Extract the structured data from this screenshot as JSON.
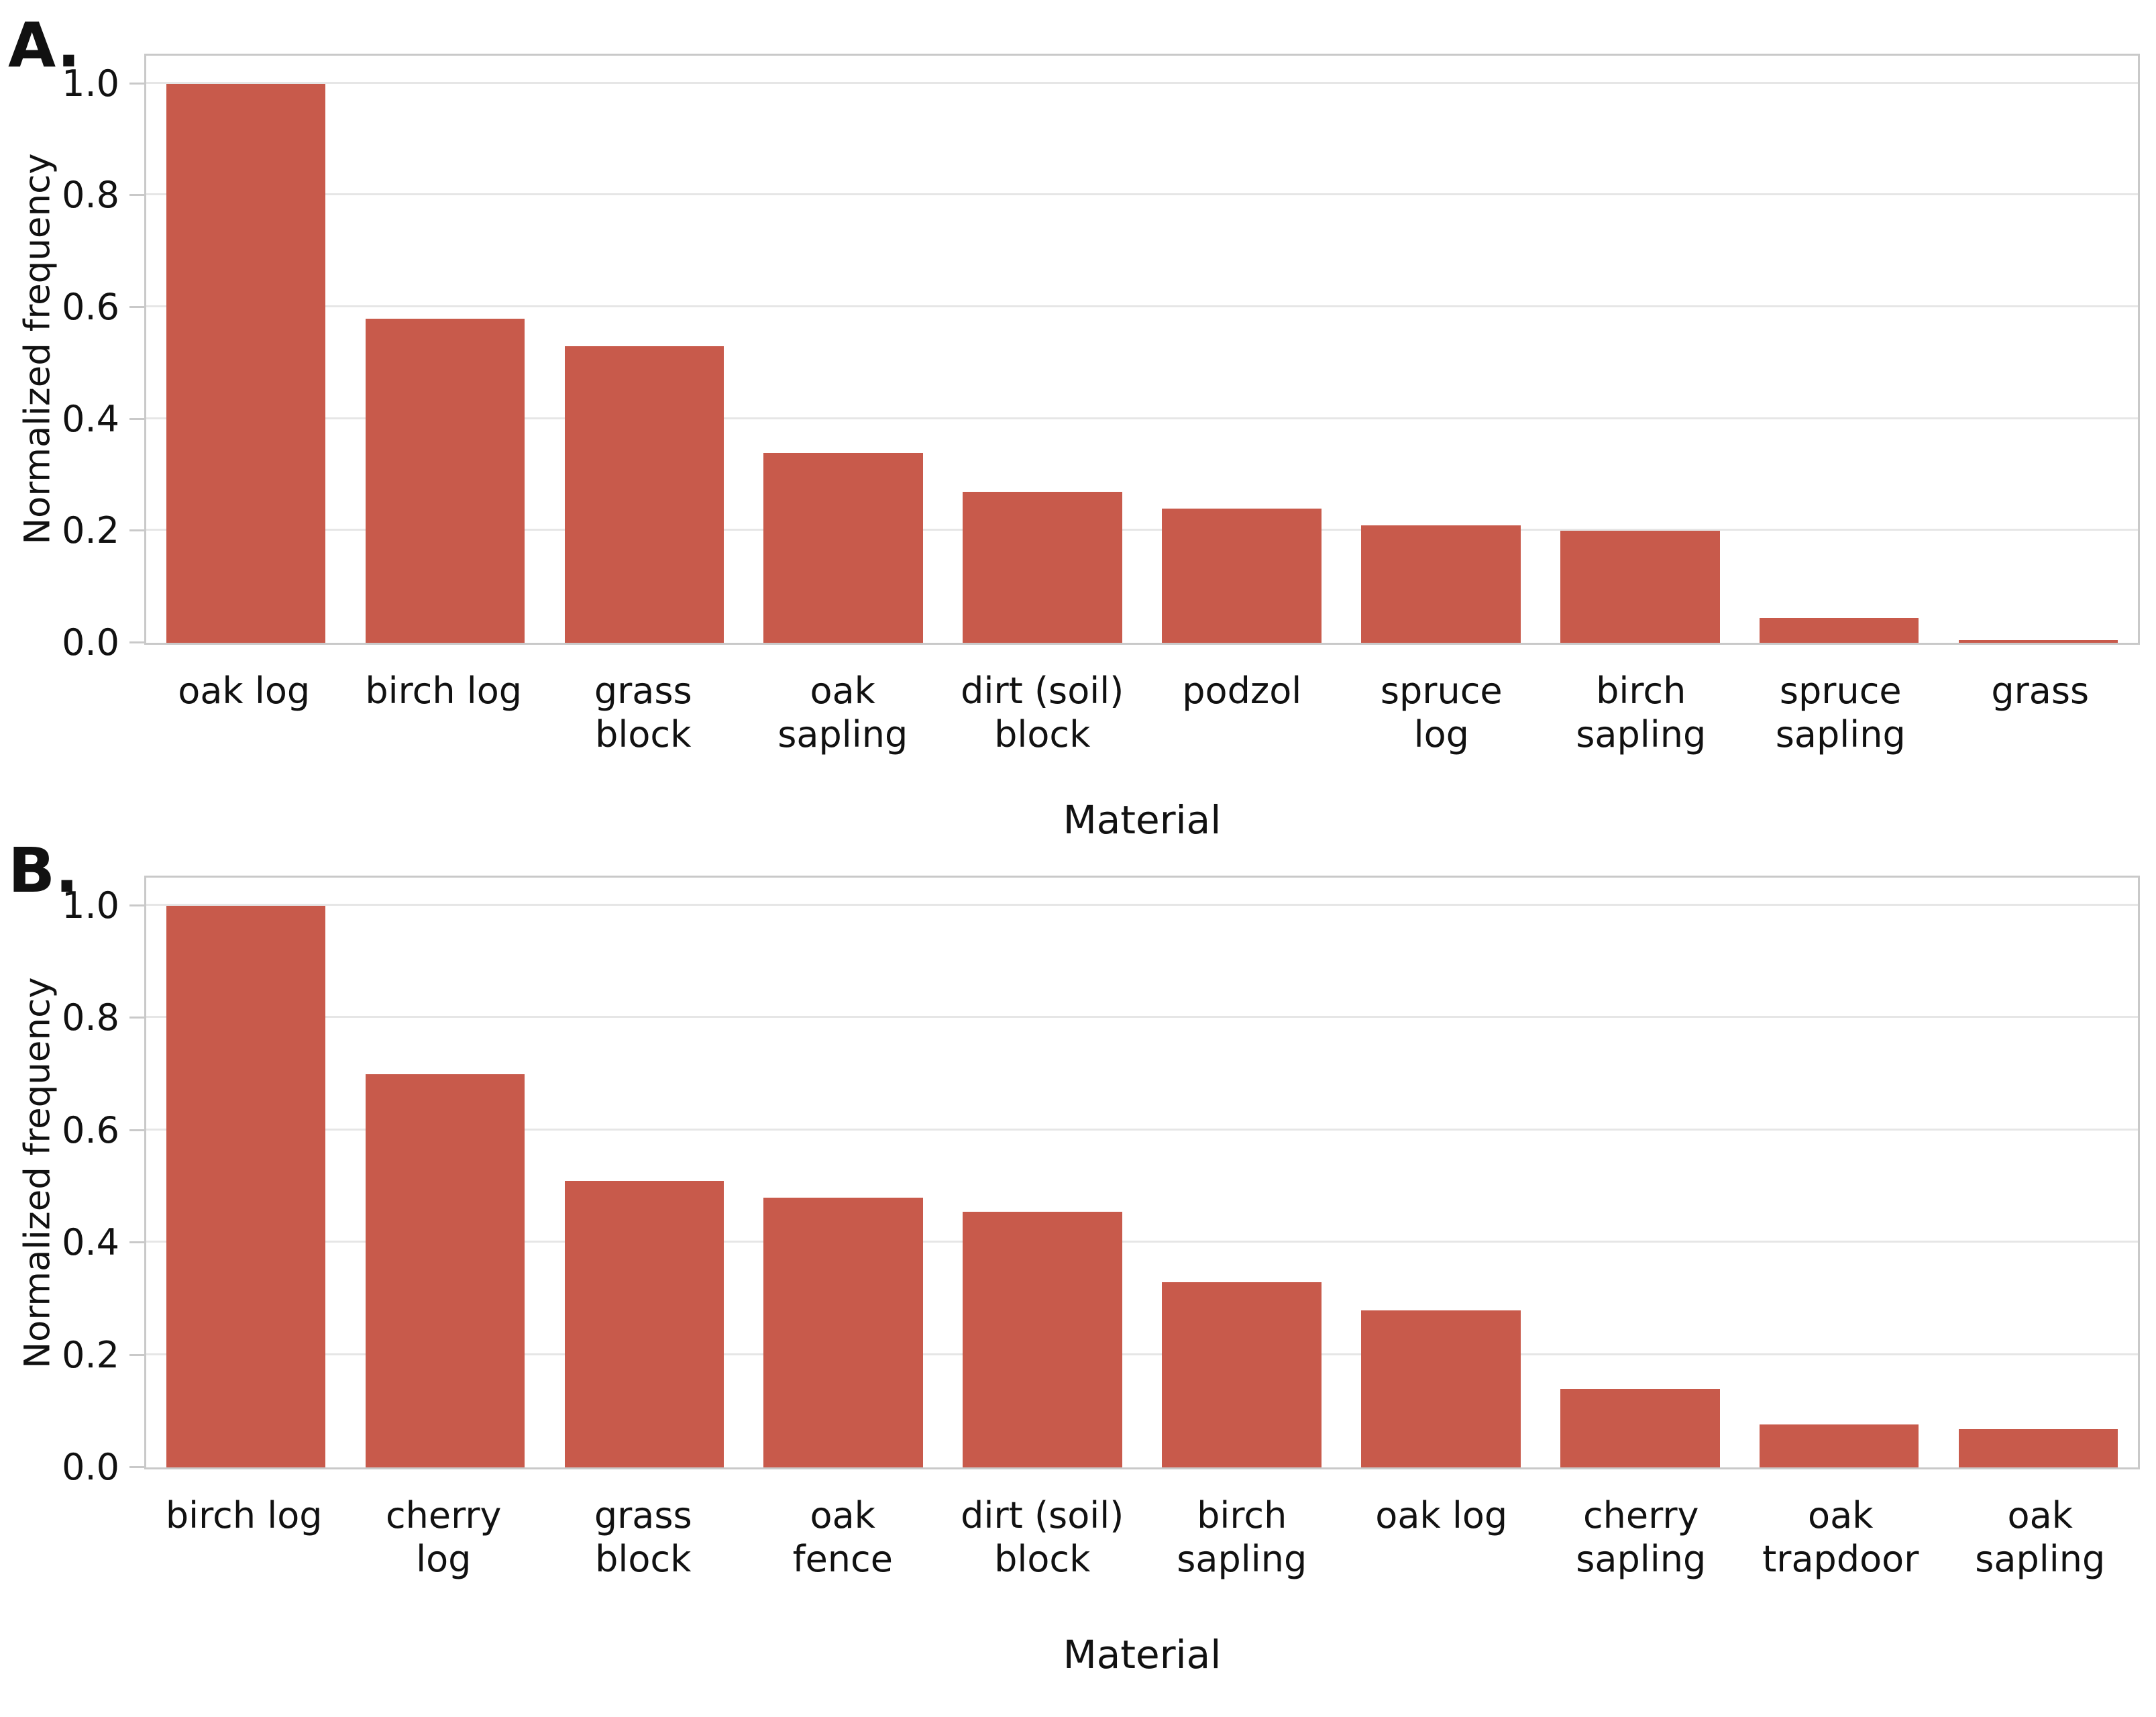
{
  "figure": {
    "background": "#ffffff"
  },
  "colors": {
    "bar": "#c85a4b",
    "grid": "#e6e6e6",
    "spine": "#c9c9c9",
    "text": "#111111"
  },
  "chart_data": [
    {
      "type": "bar",
      "panel_letter": "A.",
      "xlabel": "Material",
      "ylabel": "Normalized frequency",
      "ylim": [
        0,
        1.05
      ],
      "grid": "horizontal",
      "legend": "none",
      "yticks": [
        0.0,
        0.2,
        0.4,
        0.6,
        0.8,
        1.0
      ],
      "categories": [
        "oak log",
        "birch log",
        "grass\nblock",
        "oak\nsapling",
        "dirt (soil)\nblock",
        "podzol",
        "spruce\nlog",
        "birch\nsapling",
        "spruce\nsapling",
        "grass"
      ],
      "values": [
        1.0,
        0.58,
        0.53,
        0.34,
        0.27,
        0.24,
        0.21,
        0.2,
        0.045,
        0.005
      ]
    },
    {
      "type": "bar",
      "panel_letter": "B.",
      "xlabel": "Material",
      "ylabel": "Normalized frequency",
      "ylim": [
        0,
        1.05
      ],
      "grid": "horizontal",
      "legend": "none",
      "yticks": [
        0.0,
        0.2,
        0.4,
        0.6,
        0.8,
        1.0
      ],
      "categories": [
        "birch log",
        "cherry\nlog",
        "grass\nblock",
        "oak\nfence",
        "dirt (soil)\nblock",
        "birch\nsapling",
        "oak log",
        "cherry\nsapling",
        "oak\ntrapdoor",
        "oak\nsapling"
      ],
      "values": [
        1.0,
        0.7,
        0.51,
        0.48,
        0.455,
        0.33,
        0.28,
        0.14,
        0.077,
        0.068
      ]
    }
  ]
}
